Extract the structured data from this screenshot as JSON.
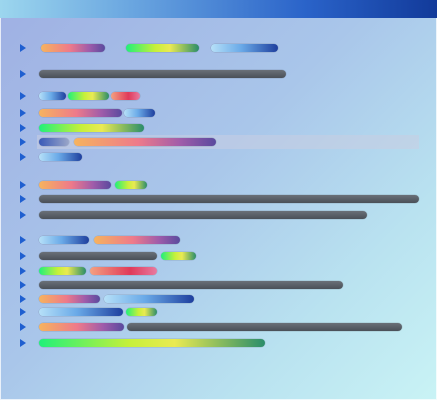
{
  "window": {
    "title": "",
    "colors": {
      "titlebar_start": "#9cd6ee",
      "titlebar_end": "#123a9a",
      "background_start": "#9fb0e3",
      "background_end": "#c9f3f5",
      "row_marker": "#1f5fd0",
      "selected_row_highlight": "#c8cde1"
    }
  },
  "outline": {
    "rows_with_markers": 19,
    "selected_row": 6,
    "expand_icon": "triangle-right-icon",
    "bar_styles": [
      "orange-magenta",
      "lime-yellow",
      "light-blue",
      "orange-red",
      "dark-gray"
    ]
  }
}
